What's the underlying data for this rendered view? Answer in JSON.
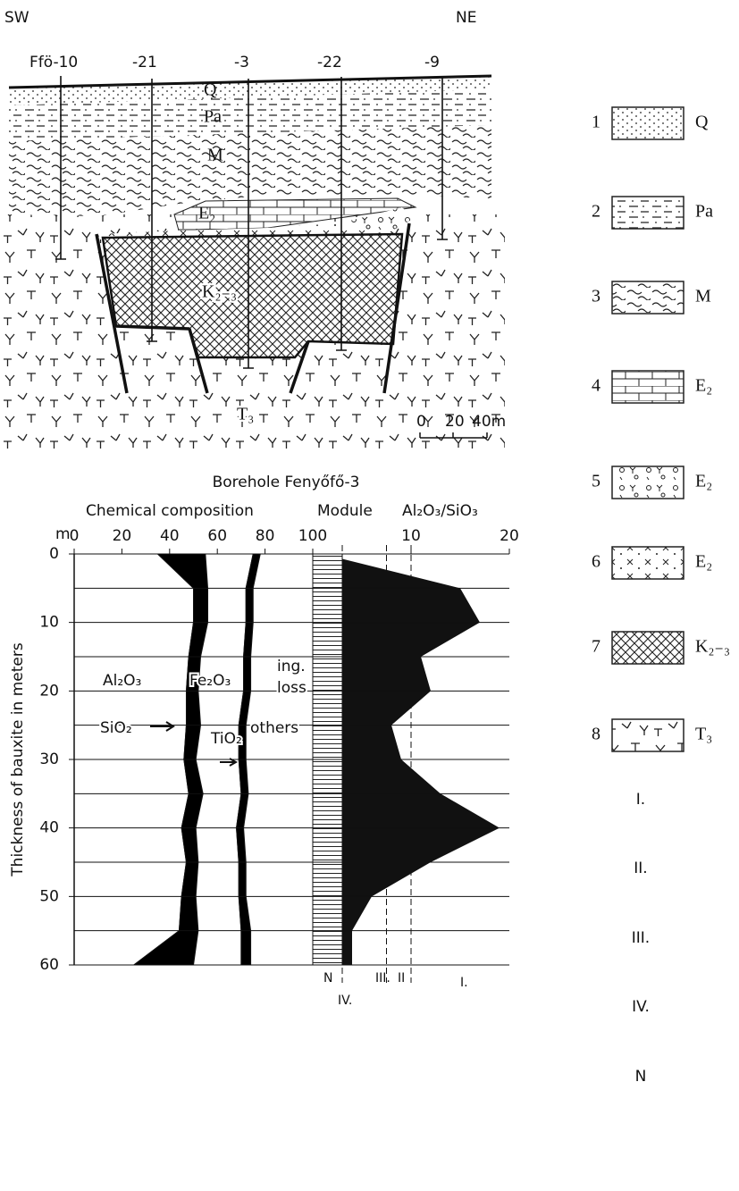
{
  "section": {
    "sw": "SW",
    "ne": "NE",
    "boreholes": [
      "Ffö-10",
      "-21",
      "-3",
      "-22",
      "-9"
    ],
    "units": {
      "q": "Q",
      "pa": "Pa",
      "m": "M",
      "e2": "E₂",
      "k": "K₂₋₃",
      "t": "T₃"
    },
    "scale": [
      "0",
      "20",
      "40m"
    ]
  },
  "legend": {
    "items": [
      {
        "number": "1",
        "label": "Q"
      },
      {
        "number": "2",
        "label": "Pa"
      },
      {
        "number": "3",
        "label": "M"
      },
      {
        "number": "4",
        "label": "E₂"
      },
      {
        "number": "5",
        "label": "E₂"
      },
      {
        "number": "6",
        "label": "E₂"
      },
      {
        "number": "7",
        "label": "K₂₋₃"
      },
      {
        "number": "8",
        "label": "T₃"
      }
    ],
    "classes": [
      "I.",
      "II.",
      "III.",
      "IV.",
      "N"
    ]
  },
  "chart_data": {
    "type": "area",
    "title": "Borehole Fenyőfő-3",
    "x_label": "Chemical composition",
    "y_label": "Thickness of bauxite in meters",
    "y_unit": "m",
    "module_label": "Module",
    "module_ratio": "Al₂O₃/SiO₃",
    "depth": [
      0,
      5,
      10,
      15,
      20,
      25,
      30,
      35,
      40,
      45,
      50,
      55,
      60
    ],
    "series": [
      {
        "name": "Al₂O₃",
        "color": "#ffffff",
        "values": [
          35,
          50,
          50,
          48,
          47,
          47,
          46,
          48,
          45,
          47,
          45,
          44,
          25
        ]
      },
      {
        "name": "SiO₂",
        "color": "#000000",
        "values": [
          20,
          6,
          6,
          5,
          5,
          6,
          5,
          6,
          6,
          5,
          6,
          8,
          25
        ]
      },
      {
        "name": "Fe₂O₃",
        "color": "#ffffff",
        "values": [
          20,
          16,
          16,
          18,
          19,
          16,
          18,
          16,
          17,
          17,
          18,
          18,
          20
        ]
      },
      {
        "name": "TiO₂",
        "color": "#000000",
        "values": [
          3,
          3,
          3,
          3,
          3,
          3,
          3,
          3,
          3,
          3,
          3,
          4,
          4
        ]
      },
      {
        "name": "others",
        "color": "#ffffff",
        "values": [
          22,
          25,
          25,
          26,
          26,
          28,
          28,
          27,
          29,
          28,
          28,
          26,
          26
        ]
      }
    ],
    "annotation": [
      "ing.",
      "loss"
    ],
    "xlim": [
      0,
      100
    ],
    "xticks": [
      0,
      20,
      40,
      60,
      80,
      100
    ],
    "ylim": [
      0,
      60
    ],
    "yticks": [
      0,
      10,
      20,
      30,
      40,
      50,
      60
    ],
    "minor_yticks": [
      5,
      15,
      25,
      35,
      45,
      55
    ],
    "module": {
      "values": [
        1,
        15,
        17,
        11,
        12,
        8,
        9,
        13,
        19,
        12,
        6,
        4,
        4
      ],
      "lim": [
        0,
        20
      ],
      "ticks": [
        10,
        20
      ],
      "class_bounds": [
        3,
        7.5,
        10
      ],
      "class_labels": [
        "N",
        "IV.",
        "III.",
        "II",
        "I."
      ]
    }
  }
}
